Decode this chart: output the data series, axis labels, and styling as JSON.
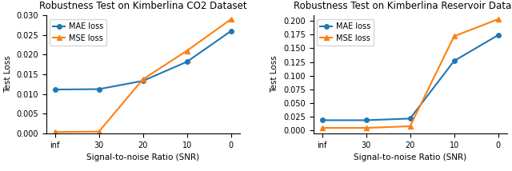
{
  "plot1": {
    "title": "Robustness Test on Kimberlina CO2 Dataset",
    "xlabel": "Signal-to-noise Ratio (SNR)",
    "ylabel": "Test Loss",
    "x_labels": [
      "inf",
      "30",
      "20",
      "10",
      "0"
    ],
    "mae_values": [
      0.01115,
      0.01125,
      0.01335,
      0.0182,
      0.026
    ],
    "mse_values": [
      0.00035,
      0.00045,
      0.01375,
      0.021,
      0.029
    ],
    "ylim": [
      0.0,
      0.03
    ],
    "yticks": [
      0.0,
      0.005,
      0.01,
      0.015,
      0.02,
      0.025,
      0.03
    ]
  },
  "plot2": {
    "title": "Robustness Test on Kimberlina Reservoir Dataset",
    "xlabel": "Signal-to-noise Ratio (SNR)",
    "ylabel": "Test Loss",
    "x_labels": [
      "inf",
      "30",
      "20",
      "10",
      "0"
    ],
    "mae_values": [
      0.019,
      0.019,
      0.022,
      0.127,
      0.174
    ],
    "mse_values": [
      0.005,
      0.005,
      0.008,
      0.172,
      0.203
    ],
    "ylim": [
      -0.005,
      0.21
    ],
    "yticks": [
      0.0,
      0.025,
      0.05,
      0.075,
      0.1,
      0.125,
      0.15,
      0.175,
      0.2
    ]
  },
  "mae_color": "#1f77b4",
  "mse_color": "#ff7f0e",
  "mae_label": "MAE loss",
  "mse_label": "MSE loss",
  "mae_marker": "o",
  "mse_marker": "^",
  "title_fontsize": 8.5,
  "label_fontsize": 7.5,
  "tick_fontsize": 7,
  "legend_fontsize": 7,
  "linewidth": 1.5,
  "markersize": 4
}
